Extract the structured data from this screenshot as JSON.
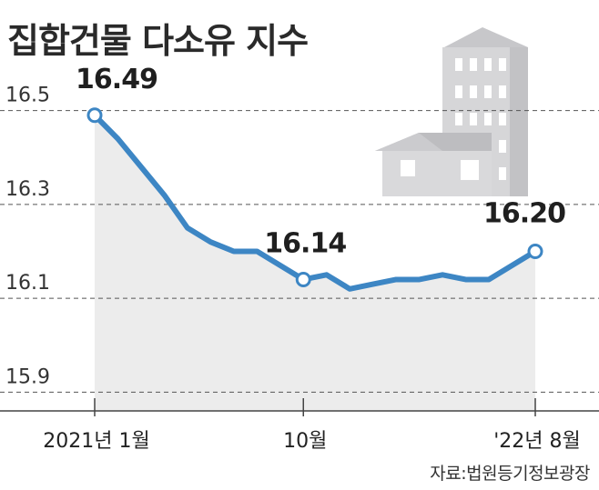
{
  "chart_data": {
    "type": "line",
    "title": "집합건물 다소유 지수",
    "source": "자료:법원등기정보광장",
    "x": [
      "2021-01",
      "2021-02",
      "2021-03",
      "2021-04",
      "2021-05",
      "2021-06",
      "2021-07",
      "2021-08",
      "2021-09",
      "2021-10",
      "2021-11",
      "2021-12",
      "2022-01",
      "2022-02",
      "2022-03",
      "2022-04",
      "2022-05",
      "2022-06",
      "2022-07",
      "2022-08"
    ],
    "values": [
      16.49,
      16.44,
      16.38,
      16.32,
      16.25,
      16.22,
      16.2,
      16.2,
      16.17,
      16.14,
      16.15,
      16.12,
      16.13,
      16.14,
      16.14,
      16.15,
      16.14,
      16.14,
      16.17,
      16.2
    ],
    "x_tick_labels": [
      {
        "index": 0,
        "label": "2021년 1월"
      },
      {
        "index": 9,
        "label": "10월"
      },
      {
        "index": 19,
        "label": "'22년 8월"
      }
    ],
    "data_labels": [
      {
        "index": 0,
        "label": "16.49"
      },
      {
        "index": 9,
        "label": "16.14"
      },
      {
        "index": 19,
        "label": "16.20"
      }
    ],
    "y_ticks": [
      "16.5",
      "16.3",
      "16.1",
      "15.9"
    ],
    "ylim": [
      15.86,
      16.6
    ],
    "grid": "horizontal-dashed",
    "colors": {
      "line": "#3d86c4",
      "area": "#ececec",
      "grid": "#555555",
      "building": "#d4d4d6",
      "building_dark": "#b8b8bb"
    }
  }
}
